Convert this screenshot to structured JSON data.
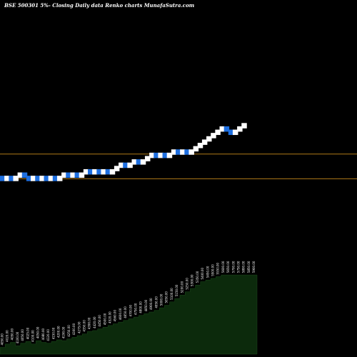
{
  "chart_data": {
    "type": "renko",
    "title": "BSE 500301 5%-  Closing Daily data  Renko  charts MunafaSutra.com",
    "colors": {
      "background": "#000000",
      "up_brick": "#ffffff",
      "down_brick": "#1e6fe0",
      "reference_line": "#b07a18",
      "volume_area": "#0c2a0c"
    },
    "reference_lines": [
      4430,
      4054
    ],
    "price_range": [
      3950,
      5900
    ],
    "bricks": [
      {
        "close": 4050,
        "dir": "down"
      },
      {
        "close": 4100,
        "dir": "up"
      },
      {
        "close": 4050,
        "dir": "down"
      },
      {
        "close": 4100,
        "dir": "up"
      },
      {
        "close": 4150,
        "dir": "up"
      },
      {
        "close": 4100,
        "dir": "down"
      },
      {
        "close": 4050,
        "dir": "down"
      },
      {
        "close": 4100,
        "dir": "up"
      },
      {
        "close": 4050,
        "dir": "down"
      },
      {
        "close": 4100,
        "dir": "up"
      },
      {
        "close": 4050,
        "dir": "down"
      },
      {
        "close": 4100,
        "dir": "up"
      },
      {
        "close": 4050,
        "dir": "down"
      },
      {
        "close": 4100,
        "dir": "up"
      },
      {
        "close": 4150,
        "dir": "up"
      },
      {
        "close": 4100,
        "dir": "down"
      },
      {
        "close": 4150,
        "dir": "up"
      },
      {
        "close": 4100,
        "dir": "down"
      },
      {
        "close": 4150,
        "dir": "up"
      },
      {
        "close": 4200,
        "dir": "up"
      },
      {
        "close": 4150,
        "dir": "down"
      },
      {
        "close": 4200,
        "dir": "up"
      },
      {
        "close": 4150,
        "dir": "down"
      },
      {
        "close": 4200,
        "dir": "up"
      },
      {
        "close": 4150,
        "dir": "down"
      },
      {
        "close": 4200,
        "dir": "up"
      },
      {
        "close": 4250,
        "dir": "up"
      },
      {
        "close": 4300,
        "dir": "up"
      },
      {
        "close": 4250,
        "dir": "down"
      },
      {
        "close": 4300,
        "dir": "up"
      },
      {
        "close": 4350,
        "dir": "up"
      },
      {
        "close": 4300,
        "dir": "down"
      },
      {
        "close": 4350,
        "dir": "up"
      },
      {
        "close": 4400,
        "dir": "up"
      },
      {
        "close": 4450,
        "dir": "up"
      },
      {
        "close": 4400,
        "dir": "down"
      },
      {
        "close": 4450,
        "dir": "up"
      },
      {
        "close": 4400,
        "dir": "down"
      },
      {
        "close": 4450,
        "dir": "up"
      },
      {
        "close": 4500,
        "dir": "up"
      },
      {
        "close": 4450,
        "dir": "down"
      },
      {
        "close": 4500,
        "dir": "up"
      },
      {
        "close": 4450,
        "dir": "down"
      },
      {
        "close": 4500,
        "dir": "up"
      },
      {
        "close": 4550,
        "dir": "up"
      },
      {
        "close": 4600,
        "dir": "up"
      },
      {
        "close": 4650,
        "dir": "up"
      },
      {
        "close": 4700,
        "dir": "up"
      },
      {
        "close": 4750,
        "dir": "up"
      },
      {
        "close": 4800,
        "dir": "up"
      },
      {
        "close": 4850,
        "dir": "up"
      },
      {
        "close": 4800,
        "dir": "down"
      },
      {
        "close": 4750,
        "dir": "down"
      },
      {
        "close": 4800,
        "dir": "up"
      },
      {
        "close": 4850,
        "dir": "up"
      },
      {
        "close": 4900,
        "dir": "up"
      }
    ],
    "volume": {
      "levels": [
        0.08,
        0.12,
        0.14,
        0.1,
        0.13,
        0.15,
        0.12,
        0.16,
        0.14,
        0.13,
        0.15,
        0.17,
        0.16,
        0.18,
        0.2,
        0.22,
        0.24,
        0.27,
        0.28,
        0.3,
        0.32,
        0.34,
        0.36,
        0.38,
        0.4,
        0.42,
        0.44,
        0.46,
        0.48,
        0.5,
        0.52,
        0.55,
        0.58,
        0.62,
        0.66,
        0.7,
        0.74,
        0.78,
        0.82,
        0.86,
        0.88,
        0.9,
        0.92,
        0.94,
        0.94,
        0.94,
        0.94,
        0.94,
        0.94,
        0.94
      ],
      "labels": [
        "4050.00",
        "4020.00",
        "4050.00",
        "4100.00",
        "4050.00",
        "4025.00",
        "4100.00",
        "4050.00",
        "4080.00",
        "4120.00",
        "4150.00",
        "4200.00",
        "4190.00",
        "4250.00",
        "4300.00",
        "4275.00",
        "4350.00",
        "4390.00",
        "4420.00",
        "4450.00",
        "4500.00",
        "4520.00",
        "4560.00",
        "4600.00",
        "4650.00",
        "4700.00",
        "4750.00",
        "4800.00",
        "4850.00",
        "4900.00",
        "4950.00",
        "5000.00",
        "5050.00",
        "5100.00",
        "5150.00",
        "5200.00",
        "5250.00",
        "5300.00",
        "5350.00",
        "5400.00",
        "5450.00",
        "5500.00",
        "5550.00",
        "5600.00",
        "5650.00",
        "5700.00",
        "5750.00",
        "5800.00",
        "5850.00",
        "5900.00"
      ]
    }
  }
}
